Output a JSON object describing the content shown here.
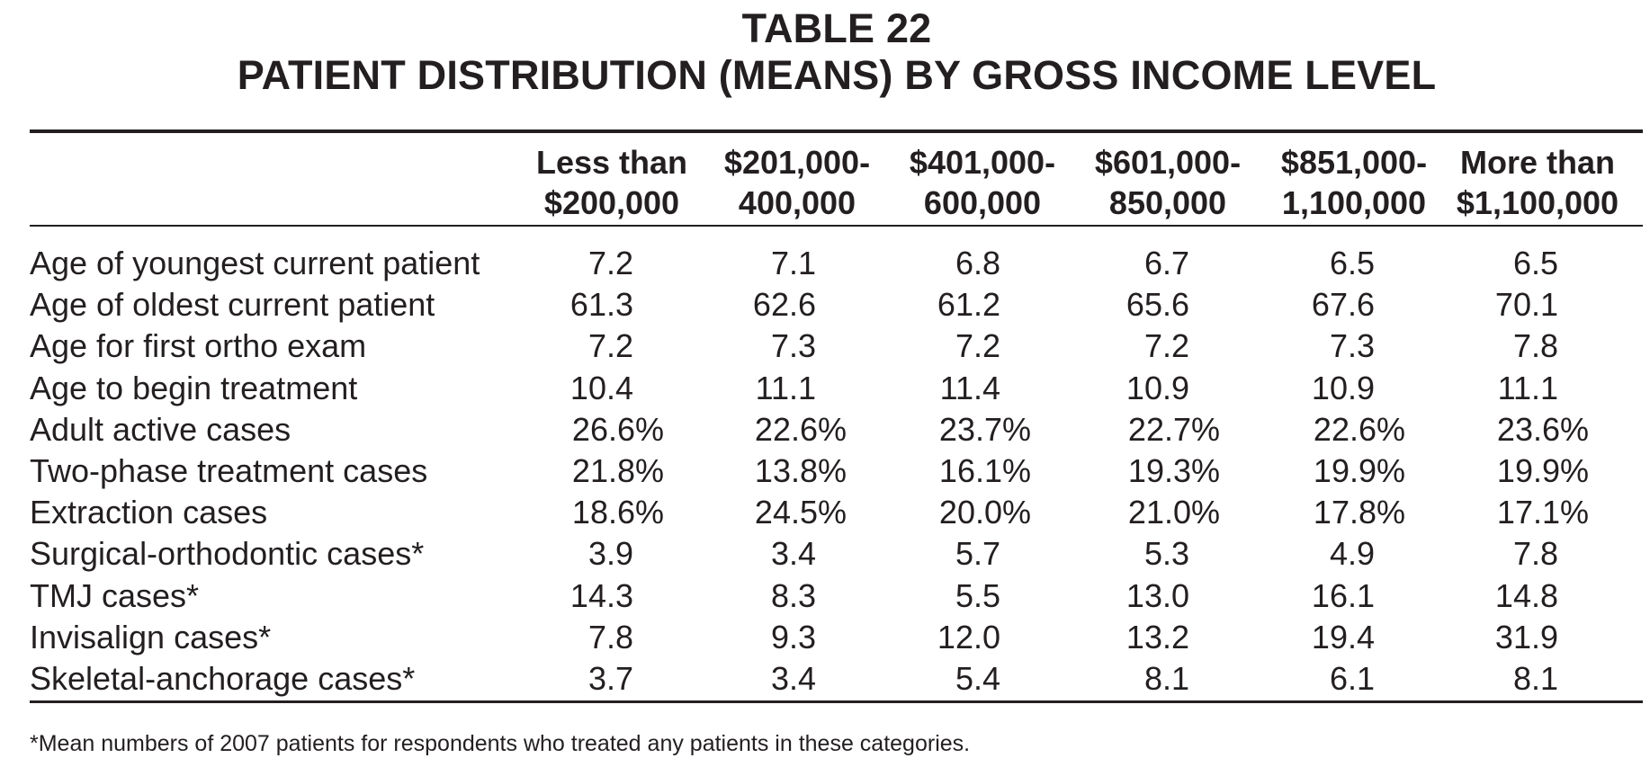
{
  "title": {
    "line1": "TABLE 22",
    "line2": "PATIENT DISTRIBUTION (MEANS) BY GROSS INCOME LEVEL"
  },
  "columns": [
    {
      "line1": "Less than",
      "line2": "$200,000"
    },
    {
      "line1": "$201,000-",
      "line2": "400,000"
    },
    {
      "line1": "$401,000-",
      "line2": "600,000"
    },
    {
      "line1": "$601,000-",
      "line2": "850,000"
    },
    {
      "line1": "$851,000-",
      "line2": "1,100,000"
    },
    {
      "line1": "More than",
      "line2": "$1,100,000"
    }
  ],
  "rows": [
    {
      "label": "Age of youngest current patient",
      "values": [
        "7.2",
        "7.1",
        "6.8",
        "6.7",
        "6.5",
        "6.5"
      ]
    },
    {
      "label": "Age of oldest current patient",
      "values": [
        "61.3",
        "62.6",
        "61.2",
        "65.6",
        "67.6",
        "70.1"
      ]
    },
    {
      "label": "Age for first ortho exam",
      "values": [
        "7.2",
        "7.3",
        "7.2",
        "7.2",
        "7.3",
        "7.8"
      ]
    },
    {
      "label": "Age to begin treatment",
      "values": [
        "10.4",
        "11.1",
        "11.4",
        "10.9",
        "10.9",
        "11.1"
      ]
    },
    {
      "label": "Adult active cases",
      "values": [
        "26.6%",
        "22.6%",
        "23.7%",
        "22.7%",
        "22.6%",
        "23.6%"
      ]
    },
    {
      "label": "Two-phase treatment cases",
      "values": [
        "21.8%",
        "13.8%",
        "16.1%",
        "19.3%",
        "19.9%",
        "19.9%"
      ]
    },
    {
      "label": "Extraction cases",
      "values": [
        "18.6%",
        "24.5%",
        "20.0%",
        "21.0%",
        "17.8%",
        "17.1%"
      ]
    },
    {
      "label": "Surgical-orthodontic cases*",
      "values": [
        "3.9",
        "3.4",
        "5.7",
        "5.3",
        "4.9",
        "7.8"
      ]
    },
    {
      "label": "TMJ cases*",
      "values": [
        "14.3",
        "8.3",
        "5.5",
        "13.0",
        "16.1",
        "14.8"
      ]
    },
    {
      "label": "Invisalign cases*",
      "values": [
        "7.8",
        "9.3",
        "12.0",
        "13.2",
        "19.4",
        "31.9"
      ]
    },
    {
      "label": "Skeletal-anchorage cases*",
      "values": [
        "3.7",
        "3.4",
        "5.4",
        "8.1",
        "6.1",
        "8.1"
      ]
    }
  ],
  "footnote": "*Mean numbers of 2007 patients for respondents who treated any patients in these categories."
}
